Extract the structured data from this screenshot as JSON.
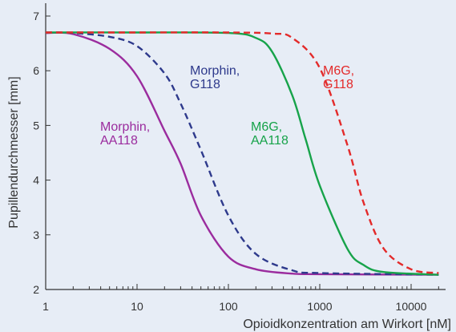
{
  "chart_data": {
    "type": "line",
    "xlabel": "Opioidkonzentration am Wirkort [nM]",
    "ylabel": "Pupillendurchmesser [mm]",
    "xscale": "log",
    "xlim": [
      1,
      20000
    ],
    "ylim": [
      2,
      7.4
    ],
    "xticks": [
      {
        "value": 1,
        "label": "1"
      },
      {
        "value": 10,
        "label": "10"
      },
      {
        "value": 100,
        "label": "100"
      },
      {
        "value": 1000,
        "label": "1000"
      },
      {
        "value": 10000,
        "label": "10000"
      }
    ],
    "yticks": [
      {
        "value": 2,
        "label": "2"
      },
      {
        "value": 3,
        "label": "3"
      },
      {
        "value": 4,
        "label": "4"
      },
      {
        "value": 5,
        "label": "5"
      },
      {
        "value": 6,
        "label": "6"
      },
      {
        "value": 7,
        "label": "7"
      }
    ],
    "grid": false,
    "series": [
      {
        "name": "Morphin, AA118",
        "label_lines": [
          "Morphin,",
          "AA118"
        ],
        "color": "#9b2c9e",
        "dashed": false,
        "x": [
          1,
          2,
          5,
          10,
          20,
          30,
          50,
          100,
          200,
          500,
          1000,
          20000
        ],
        "y": [
          6.69,
          6.67,
          6.4,
          5.9,
          4.9,
          4.3,
          3.35,
          2.6,
          2.37,
          2.29,
          2.28,
          2.27
        ]
      },
      {
        "name": "Morphin, G118",
        "label_lines": [
          "Morphin,",
          "G118"
        ],
        "color": "#2e3a8c",
        "dashed": true,
        "x": [
          1,
          2,
          5,
          10,
          20,
          30,
          50,
          100,
          200,
          500,
          1000,
          20000
        ],
        "y": [
          6.7,
          6.69,
          6.62,
          6.45,
          5.95,
          5.4,
          4.55,
          3.35,
          2.65,
          2.35,
          2.3,
          2.27
        ]
      },
      {
        "name": "M6G, AA118",
        "label_lines": [
          "M6G,",
          "AA118"
        ],
        "color": "#17a34a",
        "dashed": false,
        "x": [
          1,
          10,
          100,
          200,
          300,
          500,
          700,
          1000,
          2000,
          3000,
          5000,
          20000
        ],
        "y": [
          6.7,
          6.7,
          6.69,
          6.6,
          6.35,
          5.55,
          4.75,
          3.9,
          2.75,
          2.45,
          2.32,
          2.27
        ]
      },
      {
        "name": "M6G, G118",
        "label_lines": [
          "M6G,",
          "G118"
        ],
        "color": "#e32a2a",
        "dashed": true,
        "x": [
          1,
          10,
          100,
          300,
          500,
          1000,
          2000,
          3000,
          5000,
          10000,
          20000
        ],
        "y": [
          6.7,
          6.7,
          6.7,
          6.68,
          6.6,
          6.05,
          4.65,
          3.6,
          2.75,
          2.37,
          2.3
        ]
      }
    ]
  }
}
